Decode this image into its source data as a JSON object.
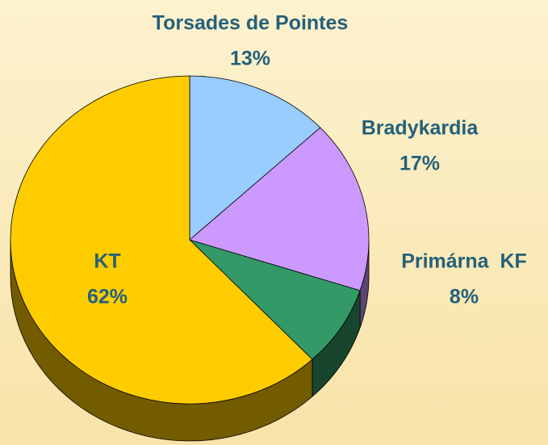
{
  "chart_data": {
    "type": "pie",
    "categories": [
      "Torsades de Pointes",
      "Bradykardia",
      "Primárna  KF",
      "KT"
    ],
    "values": [
      13,
      17,
      8,
      62
    ],
    "value_labels": [
      "13%",
      "17%",
      "8%",
      "62%"
    ],
    "colors": [
      "#99ccff",
      "#cc99ff",
      "#339966",
      "#ffcc00"
    ]
  }
}
